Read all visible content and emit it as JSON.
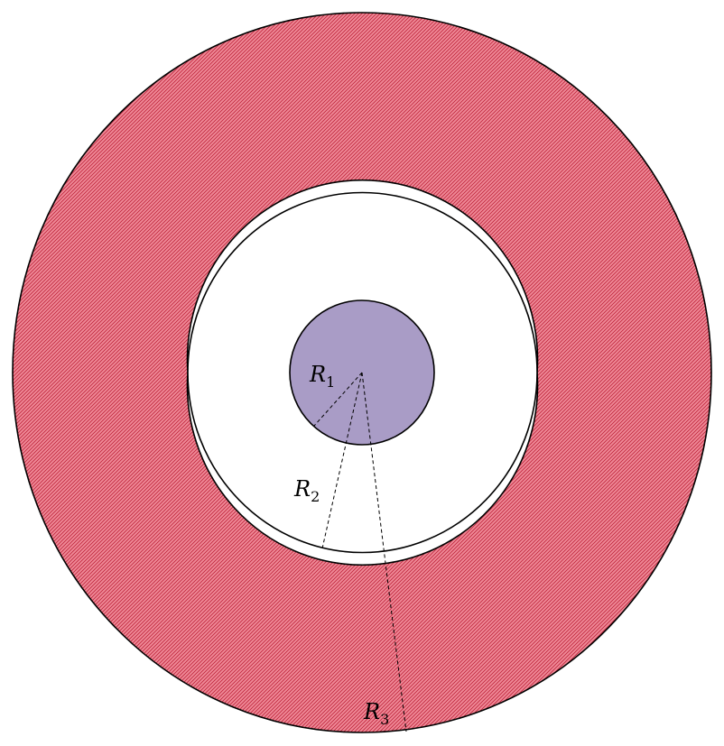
{
  "diagram": {
    "labels": {
      "r1": {
        "main": "R",
        "sub": "1"
      },
      "r2": {
        "main": "R",
        "sub": "2"
      },
      "r3": {
        "main": "R",
        "sub": "3"
      }
    }
  },
  "colors": {
    "outer_shell_fill": "#f08a98",
    "outer_shell_hatch": "#c0283e",
    "inner_sphere_fill": "#a99cc6",
    "gap_fill": "#ffffff",
    "outline": "#000000"
  }
}
